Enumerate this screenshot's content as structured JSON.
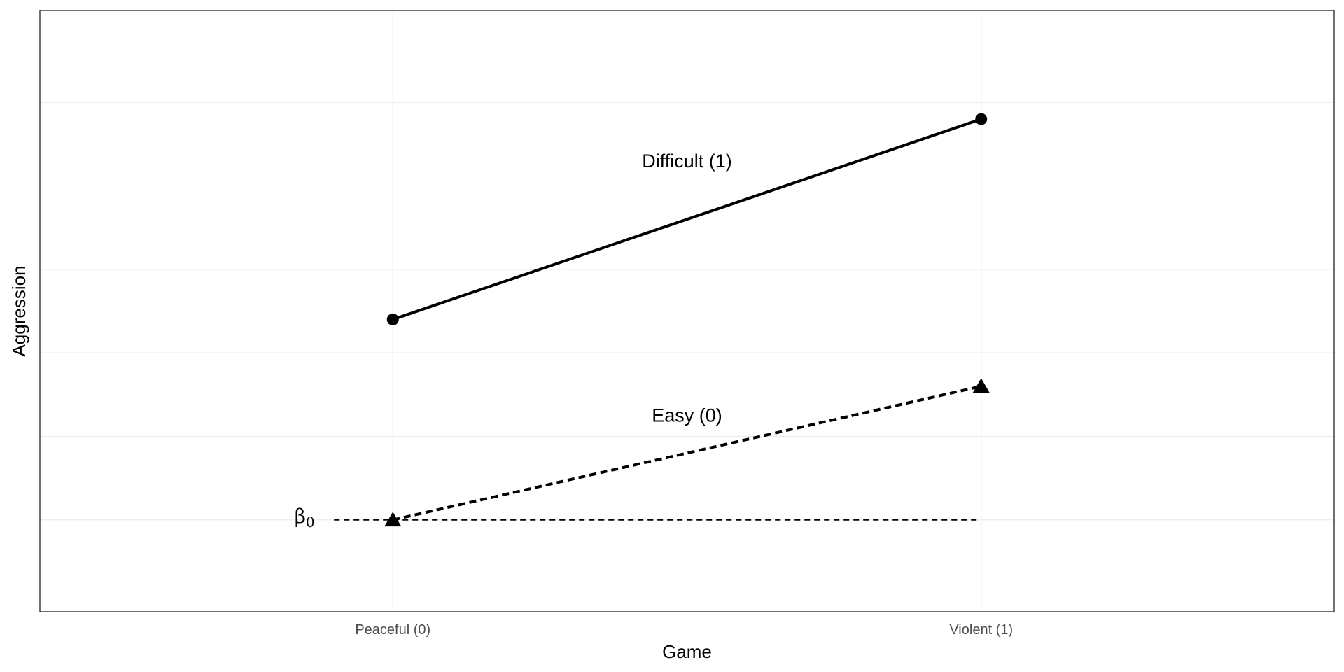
{
  "chart_data": {
    "type": "line",
    "title": "",
    "xlabel": "Game",
    "ylabel": "Aggression",
    "categories": [
      "Peaceful (0)",
      "Violent (1)"
    ],
    "x_numeric": [
      0,
      1
    ],
    "xlim": [
      -0.6,
      1.6
    ],
    "ylim": [
      -1.1,
      6.1
    ],
    "y_gridlines": [
      0,
      1,
      2,
      3,
      4,
      5
    ],
    "grid": true,
    "legend": "none",
    "series": [
      {
        "name": "Difficult (1)",
        "values": [
          2.4,
          4.8
        ],
        "line_style": "solid",
        "marker": "circle",
        "color": "#000000",
        "label_position": [
          0.5,
          4.3
        ]
      },
      {
        "name": "Easy (0)",
        "values": [
          0,
          1.6
        ],
        "line_style": "dashed",
        "marker": "triangle",
        "color": "#000000",
        "label_position": [
          0.5,
          1.25
        ]
      }
    ],
    "annotations": [
      {
        "id": "beta0",
        "symbol": "β",
        "subscript": "0",
        "x": -0.15,
        "y": 0.05,
        "reference_line": {
          "x_from": -0.1,
          "x_to": 1.0,
          "y": 0,
          "style": "dashed"
        }
      }
    ]
  }
}
